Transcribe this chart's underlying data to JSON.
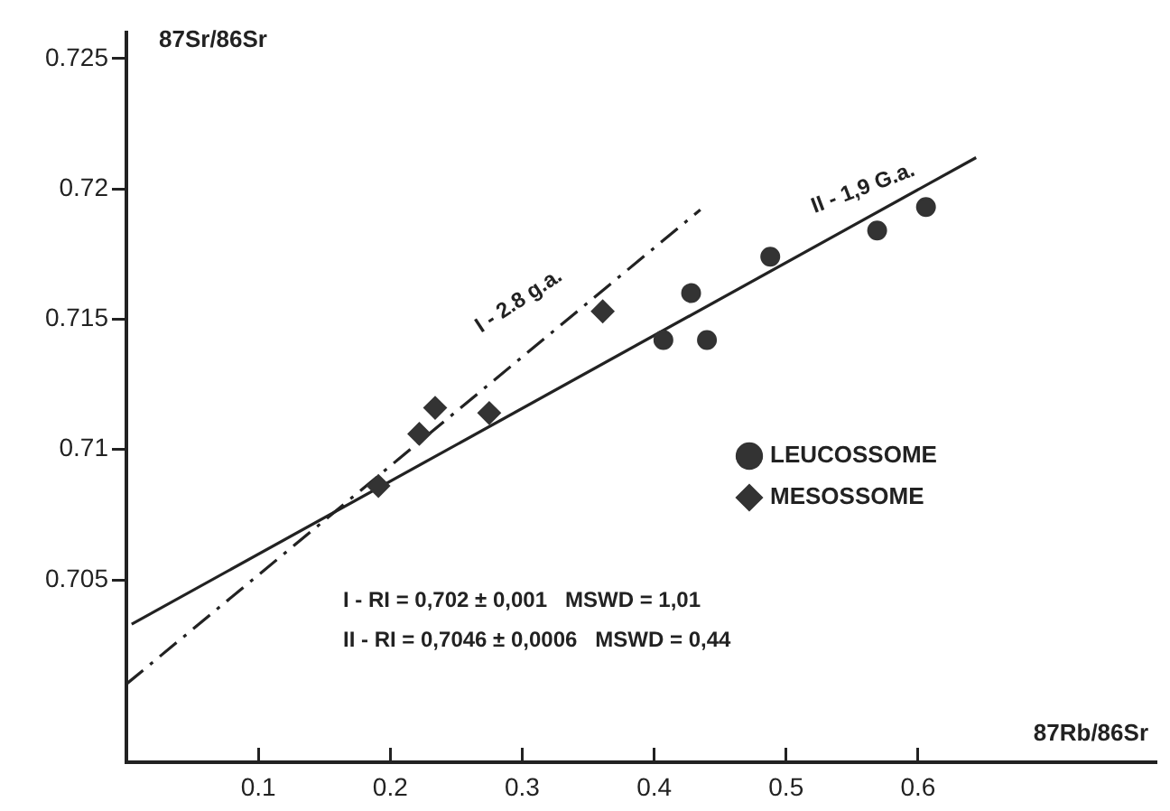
{
  "chart_data": {
    "type": "scatter",
    "xlabel": "87Rb/86Sr",
    "ylabel": "87Sr/86Sr",
    "xlim": [
      0,
      0.78
    ],
    "ylim": [
      0.698,
      0.726
    ],
    "xticks": [
      0.1,
      0.2,
      0.3,
      0.4,
      0.5,
      0.6
    ],
    "yticks": [
      0.705,
      0.71,
      0.715,
      0.72,
      0.725
    ],
    "grid": false,
    "legend": "right",
    "series": [
      {
        "name": "LEUCOSSOME",
        "marker": "circle",
        "color": "#333333",
        "x": [
          0.407,
          0.428,
          0.44,
          0.488,
          0.569,
          0.606
        ],
        "values": [
          0.7142,
          0.716,
          0.7142,
          0.7174,
          0.7184,
          0.7193
        ]
      },
      {
        "name": "MESOSSOME",
        "marker": "diamond",
        "color": "#333333",
        "x": [
          0.191,
          0.222,
          0.234,
          0.275,
          0.361
        ],
        "values": [
          0.7086,
          0.7106,
          0.7116,
          0.7114,
          0.7153
        ]
      },
      {
        "type": "line",
        "line_style": "dashed",
        "marker": "none",
        "color": "#222222",
        "x": [
          0,
          0.435
        ],
        "values": [
          0.701,
          0.7192
        ]
      },
      {
        "type": "line",
        "line_style": "solid",
        "marker": "none",
        "color": "#222222",
        "x": [
          0.004,
          0.644
        ],
        "values": [
          0.7033,
          0.7212
        ]
      }
    ],
    "annotations": [
      "I - 2.8 g.a.",
      "II - 1,9 G.a.",
      "I - RI = 0,702 ± 0,001   MSWD = 1,01",
      "II - RI = 0,7046 ± 0,0006   MSWD = 0,44"
    ]
  }
}
